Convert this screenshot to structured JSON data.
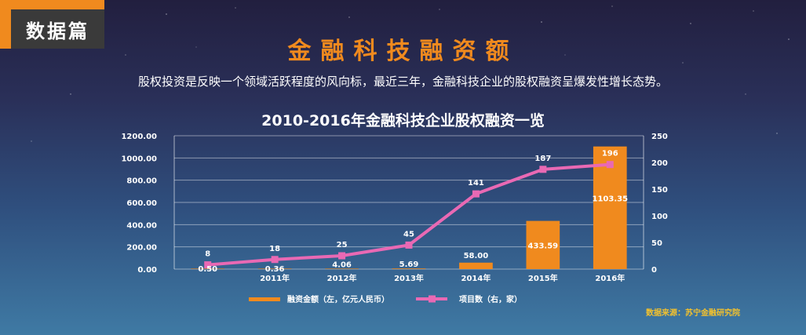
{
  "header": {
    "tag": "数据篇",
    "title": "金融科技融资额",
    "subtitle": "股权投资是反映一个领域活跃程度的风向标，最近三年，金融科技企业的股权融资呈爆发性增长态势。"
  },
  "source": "数据来源：苏宁金融研究院",
  "chart_data": {
    "type": "bar+line",
    "title": "2010-2016年金融科技企业股权融资一览",
    "categories": [
      "",
      "2011年",
      "2012年",
      "2013年",
      "2014年",
      "2015年",
      "2016年"
    ],
    "series": [
      {
        "name": "融资金额（左，亿元人民币）",
        "type": "bar",
        "axis": "left",
        "color": "#f08a1e",
        "values": [
          0.5,
          0.36,
          4.06,
          5.69,
          58.0,
          433.59,
          1103.35
        ],
        "labels": [
          "0.50",
          "0.36",
          "4.06",
          "5.69",
          "58.00",
          "433.59",
          "1103.35"
        ]
      },
      {
        "name": "项目数（右，家）",
        "type": "line",
        "axis": "right",
        "color": "#e969b4",
        "values": [
          8,
          18,
          25,
          45,
          141,
          187,
          196
        ],
        "labels": [
          "8",
          "18",
          "25",
          "45",
          "141",
          "187",
          "196"
        ]
      }
    ],
    "left_axis": {
      "ylim": [
        0,
        1200
      ],
      "ticks": [
        "0.00",
        "200.00",
        "400.00",
        "600.00",
        "800.00",
        "1000.00",
        "1200.00"
      ]
    },
    "right_axis": {
      "ylim": [
        0,
        250
      ],
      "ticks": [
        "0",
        "50",
        "100",
        "150",
        "200",
        "250"
      ]
    },
    "grid": true,
    "legend_position": "bottom"
  }
}
